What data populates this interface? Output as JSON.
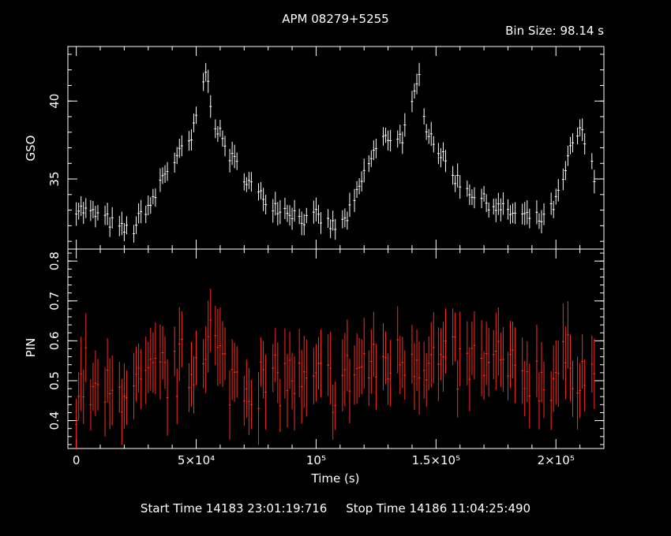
{
  "chart_data": {
    "type": "line",
    "title": "APM 08279+5255",
    "bin_size_label": "Bin Size:  98.14  s",
    "xlabel": "Time (s)",
    "xlim": [
      -3500,
      220000
    ],
    "x_ticks": [
      {
        "value": 0,
        "label": "0"
      },
      {
        "value": 50000,
        "label": "5×10⁴"
      },
      {
        "value": 100000,
        "label": "10⁵"
      },
      {
        "value": 150000,
        "label": "1.5×10⁵"
      },
      {
        "value": 200000,
        "label": "2×10⁵"
      }
    ],
    "panels": [
      {
        "ylabel": "GSO",
        "ylim": [
          30.5,
          43.5
        ],
        "y_ticks": [
          35,
          40
        ],
        "series": {
          "color": "#ffffff",
          "x": [
            0,
            4000,
            8000,
            12000,
            16000,
            20000,
            24000,
            28000,
            32000,
            36000,
            40000,
            44000,
            48000,
            52000,
            54000,
            57000,
            60000,
            64000,
            68000,
            72000,
            76000,
            80000,
            84000,
            88000,
            92000,
            96000,
            100000,
            104000,
            108000,
            112000,
            116000,
            120000,
            124000,
            128000,
            132000,
            136000,
            140000,
            143000,
            146000,
            150000,
            154000,
            158000,
            162000,
            166000,
            170000,
            174000,
            178000,
            182000,
            186000,
            190000,
            194000,
            198000,
            202000,
            206000,
            210000,
            214000,
            216000
          ],
          "y": [
            33.2,
            32.9,
            32.7,
            32.5,
            32.0,
            31.7,
            31.8,
            33.0,
            33.5,
            35.2,
            36.0,
            36.8,
            37.5,
            40.3,
            42.0,
            39.0,
            37.8,
            36.5,
            35.7,
            34.8,
            34.0,
            33.6,
            33.2,
            33.0,
            32.7,
            32.3,
            32.6,
            32.2,
            31.9,
            32.3,
            33.5,
            35.3,
            36.7,
            37.5,
            37.8,
            37.7,
            39.6,
            41.5,
            38.4,
            37.2,
            36.0,
            35.1,
            34.5,
            34.0,
            33.6,
            33.3,
            33.0,
            32.8,
            32.6,
            32.5,
            32.4,
            33.0,
            34.2,
            36.8,
            38.2,
            36.6,
            35.0
          ],
          "err": 0.6
        }
      },
      {
        "ylabel": "PIN",
        "ylim": [
          0.33,
          0.83
        ],
        "y_ticks": [
          0.4,
          0.5,
          0.6,
          0.7,
          0.8
        ],
        "series": {
          "color": "#ff2a1a",
          "x": [
            0,
            4000,
            8000,
            12000,
            16000,
            20000,
            24000,
            28000,
            32000,
            36000,
            40000,
            44000,
            48000,
            52000,
            56000,
            60000,
            64000,
            68000,
            72000,
            76000,
            80000,
            84000,
            88000,
            92000,
            96000,
            100000,
            104000,
            108000,
            112000,
            116000,
            120000,
            124000,
            128000,
            132000,
            136000,
            140000,
            144000,
            148000,
            152000,
            156000,
            160000,
            164000,
            168000,
            172000,
            176000,
            180000,
            184000,
            188000,
            192000,
            196000,
            200000,
            204000,
            208000,
            212000,
            216000
          ],
          "y": [
            0.46,
            0.52,
            0.45,
            0.47,
            0.44,
            0.5,
            0.47,
            0.48,
            0.5,
            0.52,
            0.5,
            0.54,
            0.52,
            0.6,
            0.62,
            0.55,
            0.5,
            0.53,
            0.49,
            0.5,
            0.48,
            0.5,
            0.51,
            0.5,
            0.47,
            0.49,
            0.5,
            0.48,
            0.51,
            0.52,
            0.54,
            0.53,
            0.55,
            0.54,
            0.56,
            0.57,
            0.56,
            0.55,
            0.54,
            0.55,
            0.53,
            0.54,
            0.55,
            0.53,
            0.55,
            0.52,
            0.5,
            0.53,
            0.51,
            0.5,
            0.52,
            0.55,
            0.54,
            0.52,
            0.5
          ],
          "err": 0.075
        }
      }
    ]
  },
  "footer": "Start Time 14183 23:01:19:716     Stop Time 14186 11:04:25:490"
}
